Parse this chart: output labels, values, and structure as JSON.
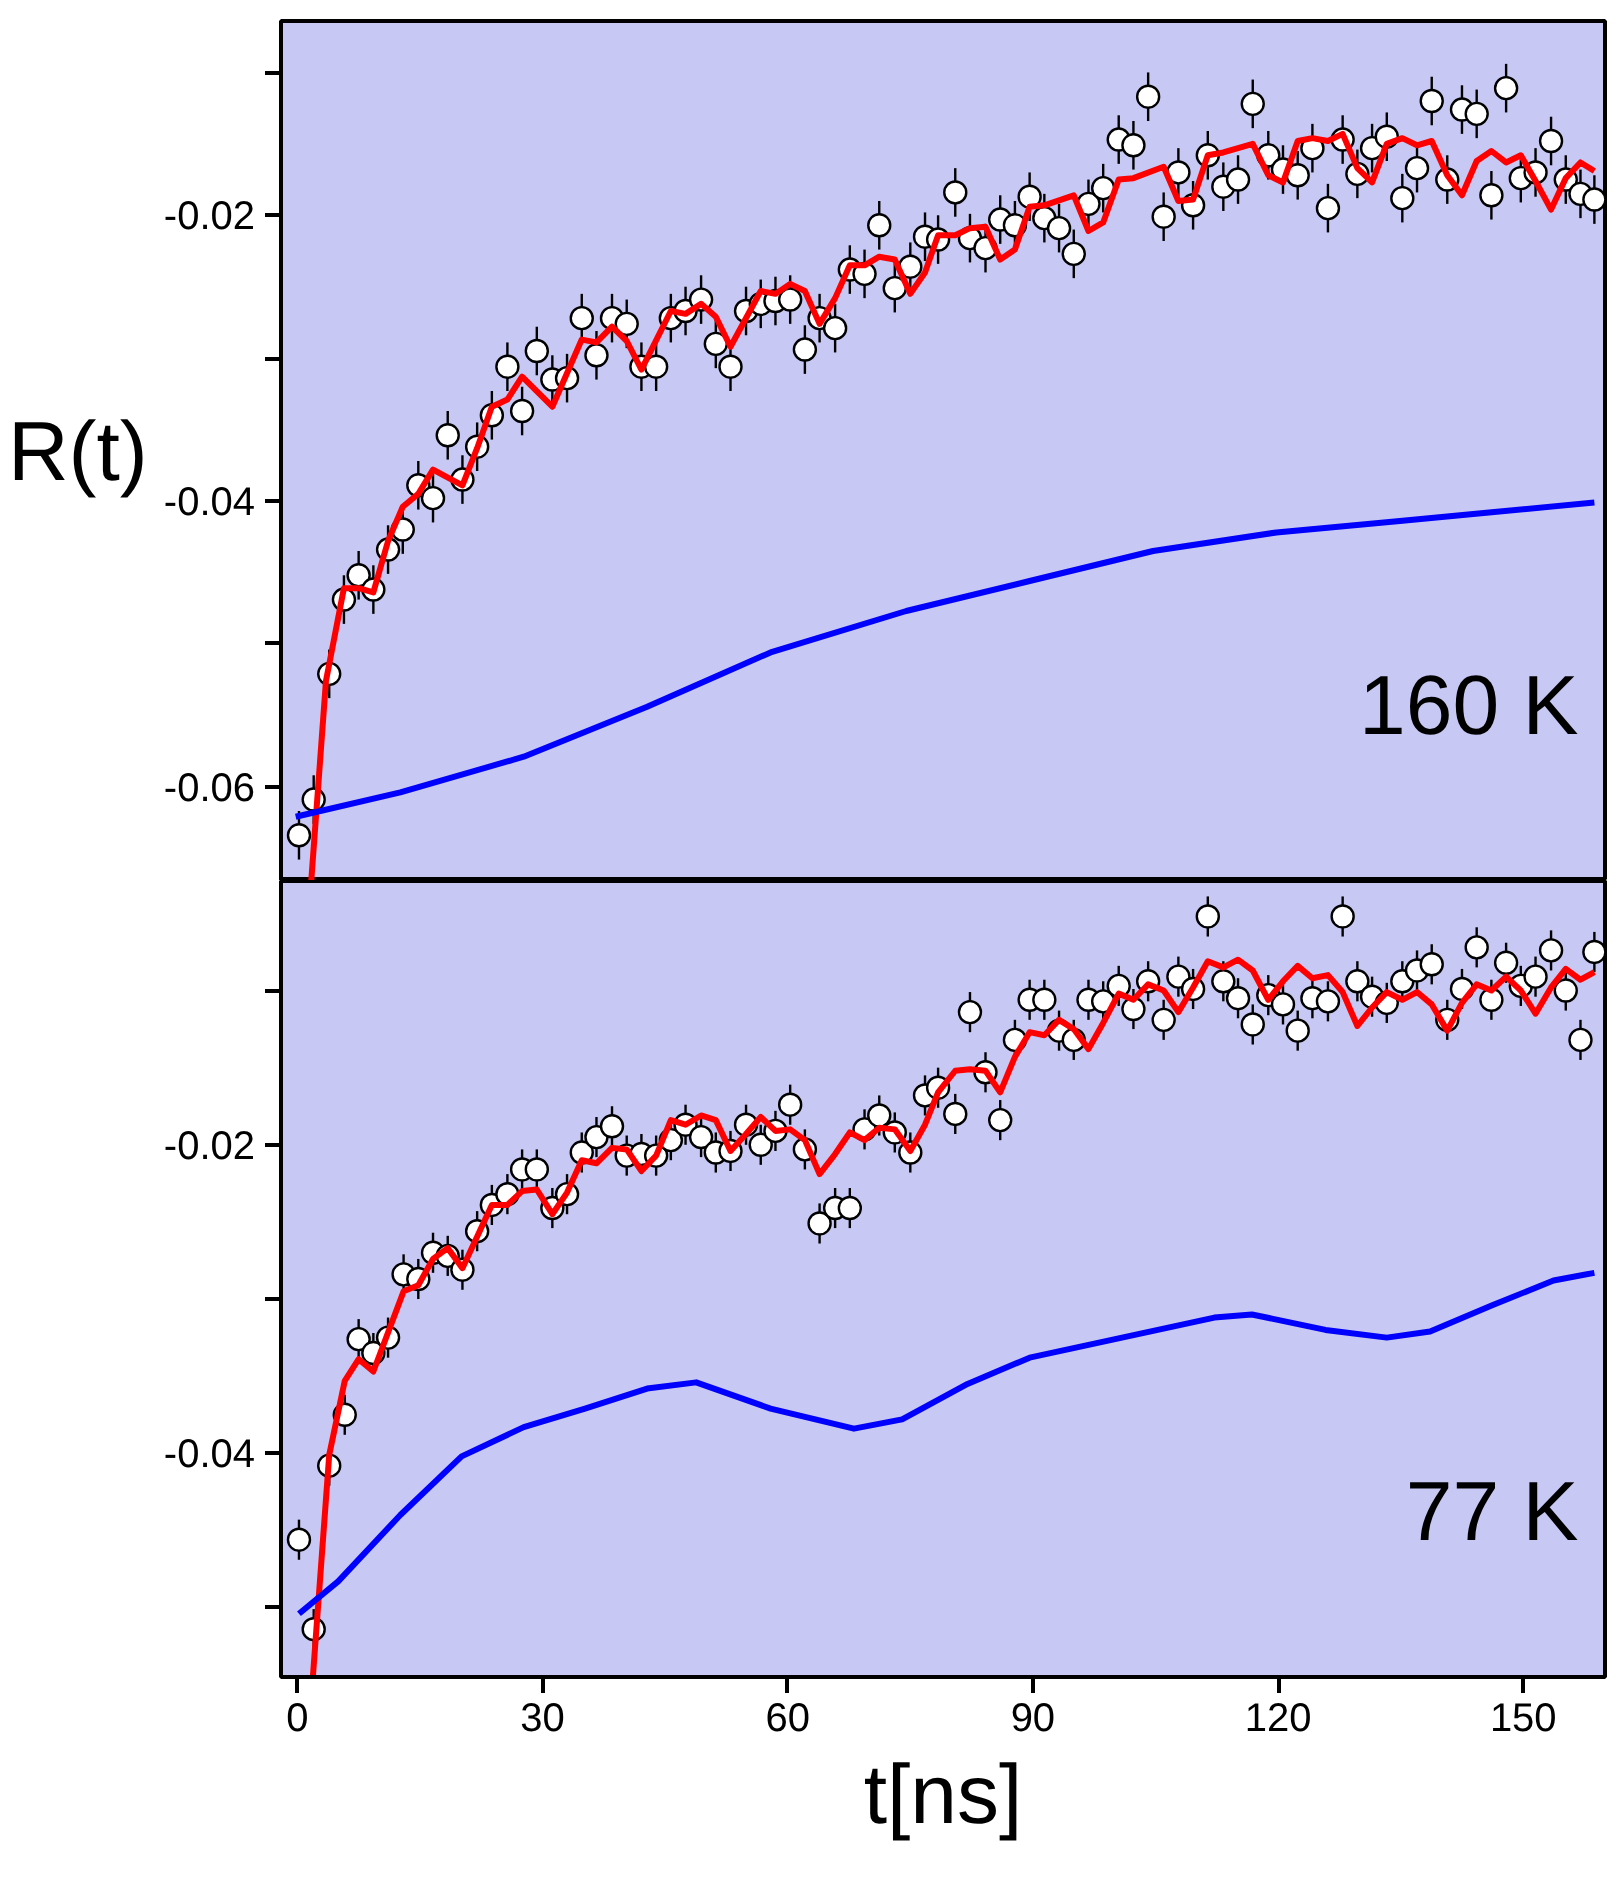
{
  "chart_data": [
    {
      "type": "line",
      "ylabel": "R(t)",
      "annotations": [
        "160 K"
      ],
      "xlim": [
        -2,
        160
      ],
      "ylim": [
        -0.0666,
        -0.0064
      ],
      "xticks": [
        0,
        30,
        60,
        90,
        120,
        150
      ],
      "yticks": [
        {
          "value": -0.01,
          "label": null
        },
        -0.02,
        {
          "value": -0.03,
          "label": null
        },
        -0.04,
        {
          "value": -0.05,
          "label": null
        },
        -0.06
      ],
      "tick_labels": "y",
      "grid": false,
      "series": [
        {
          "type": "scatter",
          "marker": "circle",
          "color": "#ffffff",
          "x": [
            0.2,
            2.0,
            3.9,
            5.7,
            7.5,
            9.3,
            11.1,
            12.9,
            14.8,
            16.6,
            18.4,
            20.2,
            22.0,
            23.8,
            25.7,
            27.5,
            29.3,
            31.2,
            33.0,
            34.8,
            36.6,
            38.5,
            40.3,
            42.1,
            43.9,
            45.7,
            47.5,
            49.4,
            51.2,
            53.0,
            54.9,
            56.7,
            58.5,
            60.3,
            62.1,
            63.9,
            65.8,
            67.6,
            69.4,
            71.2,
            73.1,
            75.0,
            76.8,
            78.4,
            80.5,
            82.3,
            84.2,
            86.0,
            87.8,
            89.6,
            91.4,
            93.2,
            95.0,
            96.8,
            98.6,
            100.5,
            102.3,
            104.1,
            106.0,
            107.8,
            109.6,
            111.4,
            113.3,
            115.1,
            116.9,
            118.8,
            120.6,
            122.4,
            124.2,
            126.1,
            127.9,
            129.7,
            131.5,
            133.3,
            135.2,
            137.0,
            138.8,
            140.7,
            142.5,
            144.3,
            146.1,
            147.9,
            149.7,
            151.5,
            153.4,
            155.2,
            157.0,
            158.7
          ],
          "values": [
            -0.0634,
            -0.0609,
            -0.0521,
            -0.0469,
            -0.0452,
            -0.0462,
            -0.0434,
            -0.042,
            -0.0389,
            -0.0398,
            -0.0354,
            -0.0385,
            -0.0362,
            -0.034,
            -0.0306,
            -0.0337,
            -0.0295,
            -0.0315,
            -0.0314,
            -0.0272,
            -0.0298,
            -0.0272,
            -0.0276,
            -0.0306,
            -0.0306,
            -0.0272,
            -0.0267,
            -0.0259,
            -0.029,
            -0.0306,
            -0.0267,
            -0.0262,
            -0.026,
            -0.0259,
            -0.0294,
            -0.0272,
            -0.0279,
            -0.0238,
            -0.0241,
            -0.0207,
            -0.0251,
            -0.0236,
            -0.0215,
            -0.0217,
            -0.0184,
            -0.0216,
            -0.0223,
            -0.0203,
            -0.0207,
            -0.0187,
            -0.0202,
            -0.0209,
            -0.0227,
            -0.0192,
            -0.0181,
            -0.0147,
            -0.0151,
            -0.0117,
            -0.0201,
            -0.017,
            -0.0193,
            -0.0158,
            -0.018,
            -0.0175,
            -0.0122,
            -0.0158,
            -0.0168,
            -0.0172,
            -0.0153,
            -0.0195,
            -0.0147,
            -0.0171,
            -0.0153,
            -0.0145,
            -0.0188,
            -0.0167,
            -0.012,
            -0.0175,
            -0.0126,
            -0.0129,
            -0.0186,
            -0.0111,
            -0.0174,
            -0.017,
            -0.0148,
            -0.0175,
            -0.0185,
            -0.0189
          ],
          "errors": [
            0.0017,
            0.0017,
            0.0017,
            0.0017,
            0.0017,
            0.0017,
            0.0017,
            0.0017,
            0.0017,
            0.0017,
            0.0017,
            0.0017,
            0.0017,
            0.0017,
            0.0017,
            0.0017,
            0.0017,
            0.0017,
            0.0017,
            0.0017,
            0.0017,
            0.0017,
            0.0017,
            0.0017,
            0.0017,
            0.0017,
            0.0017,
            0.0017,
            0.0017,
            0.0017,
            0.0017,
            0.0017,
            0.0017,
            0.0017,
            0.0017,
            0.0017,
            0.0017,
            0.0017,
            0.0017,
            0.0017,
            0.0017,
            0.0017,
            0.0017,
            0.0017,
            0.0017,
            0.0017,
            0.0017,
            0.0017,
            0.0017,
            0.0017,
            0.0017,
            0.0017,
            0.0017,
            0.0017,
            0.0017,
            0.0017,
            0.0017,
            0.0017,
            0.0017,
            0.0017,
            0.0017,
            0.0017,
            0.0017,
            0.0017,
            0.0017,
            0.0017,
            0.0017,
            0.0017,
            0.0017,
            0.0017,
            0.0017,
            0.0017,
            0.0017,
            0.0017,
            0.0017,
            0.0017,
            0.0017,
            0.0017,
            0.0017,
            0.0017,
            0.0017,
            0.0017,
            0.0017,
            0.0017,
            0.0017,
            0.0017,
            0.0017,
            0.0017
          ]
        },
        {
          "color": "#ff0000",
          "x": [
            1.7,
            3.5,
            5.7,
            7.5,
            9.3,
            11.1,
            12.9,
            14.8,
            16.6,
            20.2,
            22.0,
            23.8,
            25.7,
            27.5,
            31.2,
            34.8,
            36.6,
            38.5,
            40.3,
            42.1,
            45.7,
            47.5,
            49.4,
            51.2,
            53.0,
            56.7,
            58.5,
            60.3,
            62.1,
            63.9,
            65.8,
            67.6,
            69.4,
            71.2,
            73.1,
            75.0,
            76.8,
            78.4,
            80.5,
            82.3,
            84.2,
            86.0,
            87.8,
            89.6,
            91.4,
            95.0,
            96.8,
            98.6,
            100.5,
            102.3,
            106.0,
            107.8,
            109.6,
            111.4,
            113.3,
            116.9,
            118.8,
            120.6,
            122.4,
            124.2,
            126.1,
            127.9,
            129.7,
            131.5,
            133.3,
            135.2,
            137.0,
            138.8,
            140.7,
            142.5,
            144.3,
            146.1,
            147.9,
            149.7,
            151.5,
            153.4,
            155.2,
            157.0,
            158.7
          ],
          "values": [
            -0.0666,
            -0.0526,
            -0.0461,
            -0.0461,
            -0.0464,
            -0.0428,
            -0.0404,
            -0.0395,
            -0.0378,
            -0.0389,
            -0.0363,
            -0.0334,
            -0.0329,
            -0.0313,
            -0.0334,
            -0.0287,
            -0.0289,
            -0.0278,
            -0.0288,
            -0.0308,
            -0.0267,
            -0.0269,
            -0.0262,
            -0.0271,
            -0.0292,
            -0.0253,
            -0.0255,
            -0.0248,
            -0.0253,
            -0.0276,
            -0.0258,
            -0.0235,
            -0.0235,
            -0.0229,
            -0.0231,
            -0.0255,
            -0.024,
            -0.0214,
            -0.0214,
            -0.0209,
            -0.0208,
            -0.0231,
            -0.0224,
            -0.0194,
            -0.0193,
            -0.0186,
            -0.0211,
            -0.0205,
            -0.0175,
            -0.0174,
            -0.0166,
            -0.019,
            -0.0189,
            -0.0158,
            -0.0156,
            -0.015,
            -0.0172,
            -0.0177,
            -0.0148,
            -0.0146,
            -0.0148,
            -0.0143,
            -0.0167,
            -0.0177,
            -0.015,
            -0.0146,
            -0.0151,
            -0.0148,
            -0.0172,
            -0.0186,
            -0.0162,
            -0.0155,
            -0.0163,
            -0.0158,
            -0.0176,
            -0.0196,
            -0.0174,
            -0.0163,
            -0.0169
          ]
        },
        {
          "color": "#0000ff",
          "x": [
            -0.2,
            12.6,
            27.7,
            42.8,
            57.9,
            74.5,
            89.6,
            104.7,
            119.8,
            134.9,
            158.7
          ],
          "values": [
            -0.0621,
            -0.0604,
            -0.0579,
            -0.0544,
            -0.0506,
            -0.0477,
            -0.0456,
            -0.0435,
            -0.0422,
            -0.0414,
            -0.0401
          ]
        }
      ]
    },
    {
      "type": "line",
      "xlabel": "t[ns]",
      "annotations": [
        "77 K"
      ],
      "xlim": [
        -2,
        160
      ],
      "ylim": [
        -0.0545,
        -0.0029
      ],
      "xticks": [
        0,
        30,
        60,
        90,
        120,
        150
      ],
      "yticks": [
        {
          "value": -0.01,
          "label": null
        },
        -0.02,
        {
          "value": -0.03,
          "label": null
        },
        -0.04,
        {
          "value": -0.05,
          "label": null
        }
      ],
      "grid": false,
      "series": [
        {
          "type": "scatter",
          "marker": "circle",
          "color": "#ffffff",
          "x": [
            0.2,
            2.0,
            3.9,
            5.8,
            7.5,
            9.3,
            11.1,
            13.0,
            14.8,
            16.6,
            18.4,
            20.2,
            22.0,
            23.8,
            25.7,
            27.5,
            29.3,
            31.2,
            33.0,
            34.8,
            36.6,
            38.5,
            40.3,
            42.1,
            43.9,
            45.7,
            47.5,
            49.4,
            51.2,
            53.0,
            54.9,
            56.7,
            58.5,
            60.3,
            62.1,
            63.9,
            65.8,
            67.6,
            69.4,
            71.2,
            73.1,
            75.0,
            76.8,
            78.4,
            80.5,
            82.3,
            84.2,
            86.0,
            87.8,
            89.6,
            91.4,
            93.2,
            95.0,
            96.8,
            98.6,
            100.5,
            102.3,
            104.1,
            106.0,
            107.8,
            109.6,
            111.4,
            113.3,
            115.1,
            116.9,
            118.8,
            120.6,
            122.4,
            124.2,
            126.1,
            127.9,
            129.7,
            131.5,
            133.3,
            135.2,
            137.0,
            138.8,
            140.7,
            142.5,
            144.3,
            146.1,
            147.9,
            149.7,
            151.5,
            153.4,
            155.2,
            157.0,
            158.7
          ],
          "values": [
            -0.0456,
            -0.0514,
            -0.0408,
            -0.0375,
            -0.0326,
            -0.0335,
            -0.0325,
            -0.0284,
            -0.0287,
            -0.027,
            -0.0272,
            -0.0281,
            -0.0256,
            -0.0239,
            -0.0232,
            -0.0216,
            -0.0216,
            -0.0241,
            -0.0232,
            -0.0205,
            -0.0195,
            -0.0188,
            -0.0207,
            -0.0206,
            -0.0207,
            -0.0197,
            -0.0187,
            -0.0195,
            -0.0205,
            -0.0204,
            -0.0187,
            -0.02,
            -0.0191,
            -0.0174,
            -0.0203,
            -0.0251,
            -0.0241,
            -0.0241,
            -0.019,
            -0.0181,
            -0.0192,
            -0.0205,
            -0.0168,
            -0.0163,
            -0.018,
            -0.0114,
            -0.0153,
            -0.0184,
            -0.0132,
            -0.0106,
            -0.0106,
            -0.0126,
            -0.0132,
            -0.0106,
            -0.0107,
            -0.0097,
            -0.0112,
            -0.0094,
            -0.0119,
            -0.0091,
            -0.0099,
            -0.0052,
            -0.0094,
            -0.0105,
            -0.0122,
            -0.0103,
            -0.0109,
            -0.0126,
            -0.0105,
            -0.0107,
            -0.0052,
            -0.0094,
            -0.0104,
            -0.0108,
            -0.0094,
            -0.0087,
            -0.0083,
            -0.0119,
            -0.0099,
            -0.0072,
            -0.0106,
            -0.0082,
            -0.0097,
            -0.0091,
            -0.0074,
            -0.01,
            -0.0132,
            -0.0075
          ],
          "errors": [
            0.0013,
            0.0013,
            0.0013,
            0.0013,
            0.0013,
            0.0013,
            0.0013,
            0.0013,
            0.0013,
            0.0013,
            0.0013,
            0.0013,
            0.0013,
            0.0013,
            0.0013,
            0.0013,
            0.0013,
            0.0013,
            0.0013,
            0.0013,
            0.0013,
            0.0013,
            0.0013,
            0.0013,
            0.0013,
            0.0013,
            0.0013,
            0.0013,
            0.0013,
            0.0013,
            0.0013,
            0.0013,
            0.0013,
            0.0013,
            0.0013,
            0.0013,
            0.0013,
            0.0013,
            0.0013,
            0.0013,
            0.0013,
            0.0013,
            0.0013,
            0.0013,
            0.0013,
            0.0013,
            0.0013,
            0.0013,
            0.0013,
            0.0013,
            0.0013,
            0.0013,
            0.0013,
            0.0013,
            0.0013,
            0.0013,
            0.0013,
            0.0013,
            0.0013,
            0.0013,
            0.0013,
            0.0013,
            0.0013,
            0.0013,
            0.0013,
            0.0013,
            0.0013,
            0.0013,
            0.0013,
            0.0013,
            0.0013,
            0.0013,
            0.0013,
            0.0013,
            0.0013,
            0.0013,
            0.0013,
            0.0013,
            0.0013,
            0.0013,
            0.0013,
            0.0013,
            0.0013,
            0.0013,
            0.0013,
            0.0013,
            0.0013,
            0.0013
          ]
        },
        {
          "color": "#ff0000",
          "x": [
            1.9,
            3.9,
            5.8,
            7.5,
            9.3,
            13.0,
            14.8,
            16.6,
            18.4,
            20.2,
            23.8,
            25.7,
            27.5,
            29.3,
            31.2,
            33.0,
            34.8,
            36.6,
            38.5,
            40.3,
            42.1,
            43.9,
            45.7,
            47.5,
            49.4,
            51.2,
            53.0,
            54.9,
            56.7,
            58.5,
            60.3,
            62.1,
            63.9,
            65.8,
            67.6,
            69.4,
            71.2,
            73.1,
            75.0,
            76.8,
            78.4,
            80.5,
            82.3,
            84.2,
            86.0,
            87.8,
            89.6,
            91.4,
            93.2,
            95.0,
            96.8,
            98.6,
            100.5,
            102.3,
            104.1,
            106.0,
            107.8,
            109.6,
            111.4,
            113.3,
            115.1,
            116.9,
            118.8,
            120.6,
            122.4,
            124.2,
            126.1,
            127.9,
            129.7,
            131.5,
            133.3,
            135.2,
            137.0,
            138.8,
            140.7,
            142.5,
            144.3,
            146.1,
            147.9,
            149.7,
            151.5,
            153.4,
            155.2,
            157.0,
            158.7
          ],
          "values": [
            -0.0545,
            -0.0401,
            -0.0353,
            -0.0339,
            -0.0347,
            -0.0295,
            -0.0291,
            -0.0274,
            -0.0267,
            -0.028,
            -0.0239,
            -0.0239,
            -0.023,
            -0.0229,
            -0.0245,
            -0.0231,
            -0.021,
            -0.0212,
            -0.0202,
            -0.0203,
            -0.0217,
            -0.0207,
            -0.0184,
            -0.0187,
            -0.0181,
            -0.0184,
            -0.0204,
            -0.0193,
            -0.0182,
            -0.0191,
            -0.019,
            -0.0197,
            -0.0219,
            -0.0206,
            -0.0192,
            -0.0197,
            -0.0189,
            -0.019,
            -0.0204,
            -0.0187,
            -0.0166,
            -0.0152,
            -0.0151,
            -0.0152,
            -0.0166,
            -0.0143,
            -0.0127,
            -0.0129,
            -0.0119,
            -0.0125,
            -0.0138,
            -0.0121,
            -0.0102,
            -0.0106,
            -0.0096,
            -0.01,
            -0.0114,
            -0.0098,
            -0.0081,
            -0.0085,
            -0.008,
            -0.0087,
            -0.0106,
            -0.0094,
            -0.0084,
            -0.0092,
            -0.009,
            -0.0101,
            -0.0123,
            -0.0111,
            -0.0101,
            -0.0106,
            -0.0101,
            -0.0109,
            -0.0126,
            -0.0108,
            -0.0096,
            -0.01,
            -0.0091,
            -0.01,
            -0.0115,
            -0.0098,
            -0.0086,
            -0.0093,
            -0.0088
          ]
        },
        {
          "color": "#0000ff",
          "x": [
            0.2,
            5.0,
            12.6,
            20.1,
            27.7,
            35.2,
            42.8,
            48.8,
            57.9,
            68.1,
            74.0,
            82.0,
            89.6,
            100.9,
            112.2,
            116.8,
            125.8,
            133.3,
            138.6,
            146.2,
            153.7,
            158.7
          ],
          "values": [
            -0.0504,
            -0.0483,
            -0.044,
            -0.0402,
            -0.0383,
            -0.0371,
            -0.0358,
            -0.0354,
            -0.0371,
            -0.0384,
            -0.0378,
            -0.0355,
            -0.0338,
            -0.0325,
            -0.0312,
            -0.031,
            -0.032,
            -0.0325,
            -0.0321,
            -0.0304,
            -0.0288,
            -0.0283
          ]
        }
      ]
    }
  ]
}
